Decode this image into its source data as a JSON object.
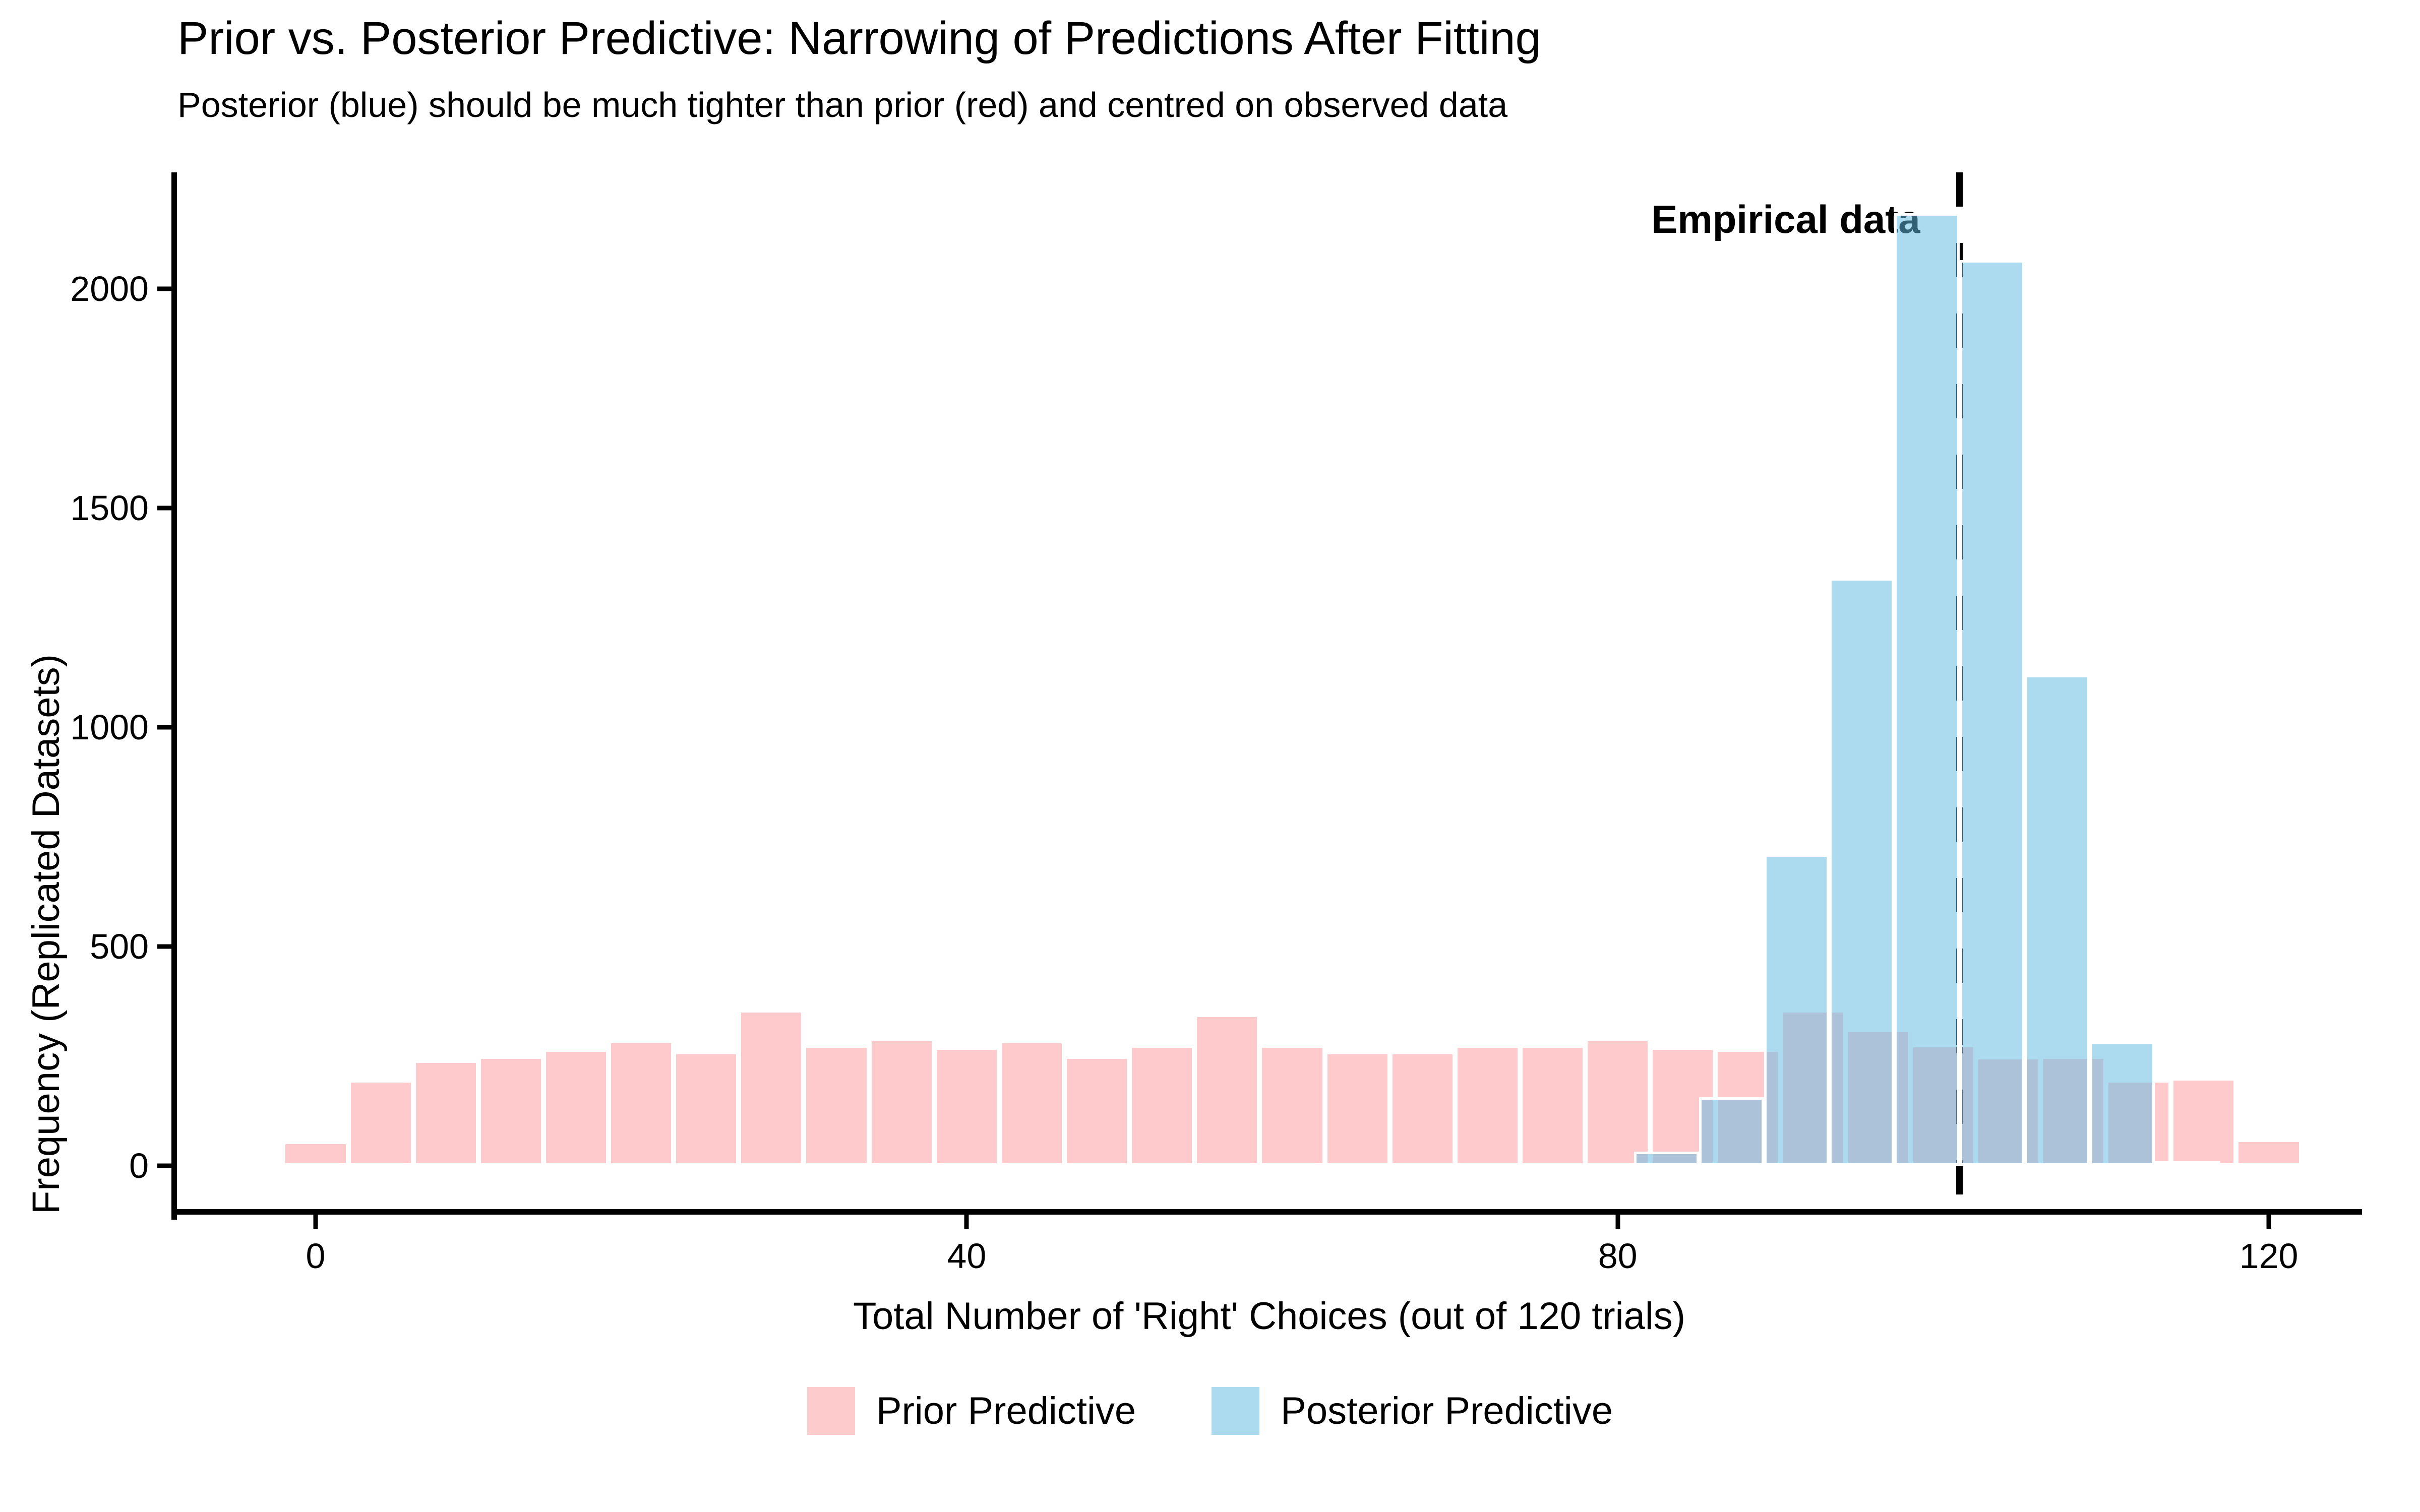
{
  "title": "Prior vs. Posterior Predictive: Narrowing of Predictions After Fitting",
  "subtitle": "Posterior (blue) should be much tighter than prior (red) and centred on observed data",
  "annotation": {
    "label": "Empirical data"
  },
  "axes": {
    "x": {
      "label": "Total Number of 'Right' Choices (out of 120 trials)",
      "ticks": [
        0,
        40,
        80,
        120
      ]
    },
    "y": {
      "label": "Frequency (Replicated Datasets)",
      "ticks": [
        0,
        500,
        1000,
        1500,
        2000
      ]
    }
  },
  "legend": {
    "items": [
      {
        "label": "Prior Predictive",
        "color": "#FECBCD"
      },
      {
        "label": "Posterior Predictive",
        "color": "#ACDBF0"
      }
    ]
  },
  "chart_data": {
    "type": "bar",
    "subtype": "overlaid-histograms",
    "title": "Prior vs. Posterior Predictive: Narrowing of Predictions After Fitting",
    "subtitle": "Posterior (blue) should be much tighter than prior (red) and centred on observed data",
    "xlabel": "Total Number of 'Right' Choices (out of 120 trials)",
    "ylabel": "Frequency (Replicated Datasets)",
    "xlim": [
      -8.5,
      126
    ],
    "ylim": [
      0,
      2375
    ],
    "x_ticks": [
      0,
      40,
      80,
      120
    ],
    "y_ticks": [
      0,
      500,
      1000,
      1500,
      2000
    ],
    "grid": false,
    "legend_position": "bottom",
    "binwidth": 4,
    "series": [
      {
        "name": "Prior Predictive",
        "fill": "rgba(253,95,100,0.33)",
        "legend_color": "#FECBCD",
        "bin_centers": [
          0,
          4,
          8,
          12,
          16,
          20,
          24,
          28,
          32,
          36,
          40,
          44,
          48,
          52,
          56,
          60,
          64,
          68,
          72,
          76,
          80,
          84,
          88,
          92,
          96,
          100,
          104,
          108,
          112,
          116,
          120
        ],
        "counts": [
          55,
          195,
          240,
          250,
          265,
          285,
          260,
          355,
          275,
          290,
          270,
          285,
          250,
          275,
          345,
          275,
          260,
          260,
          275,
          275,
          290,
          270,
          265,
          355,
          310,
          276,
          248,
          250,
          195,
          200,
          60
        ]
      },
      {
        "name": "Posterior Predictive",
        "fill": "rgba(95,186,226,0.52)",
        "legend_color": "#ACDBF0",
        "bin_centers": [
          83,
          87,
          91,
          95,
          99,
          103,
          107,
          111,
          115
        ],
        "counts": [
          32,
          156,
          710,
          1340,
          2172,
          2066,
          1120,
          283,
          10
        ]
      }
    ],
    "vline": {
      "x": 101,
      "color": "#000000",
      "style": "dashed",
      "label": "Empirical data"
    }
  }
}
